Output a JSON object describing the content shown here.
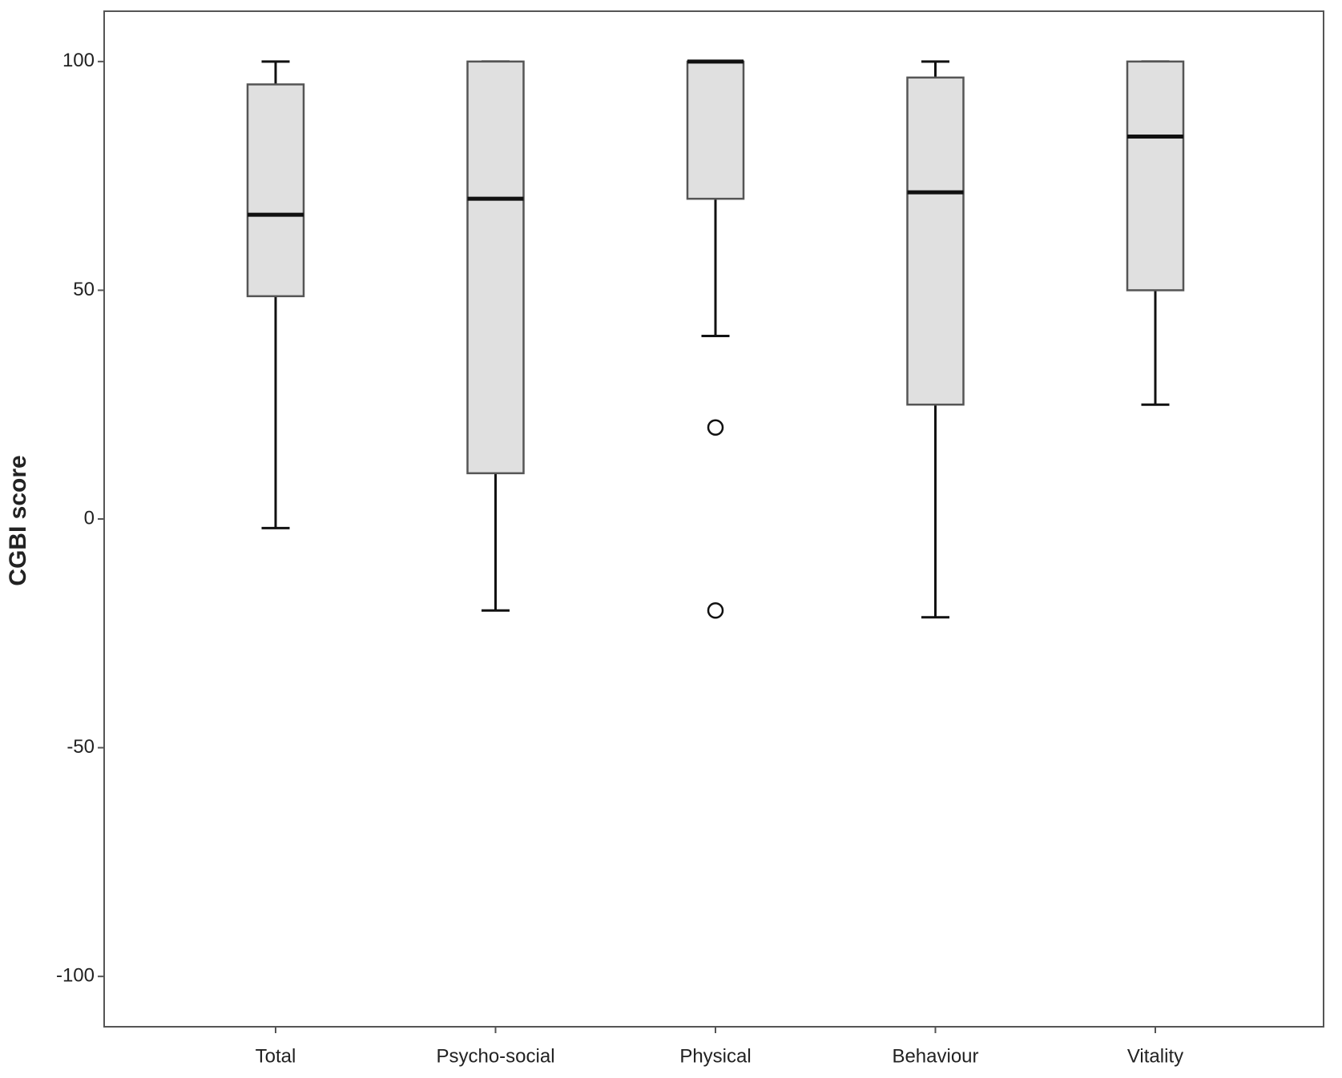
{
  "chart_data": {
    "type": "box",
    "y_label": "CGBI score",
    "categories": [
      "Total",
      "Psycho-social",
      "Physical",
      "Behaviour",
      "Vitality"
    ],
    "whisker_low": [
      -2,
      -20,
      40,
      -21.5,
      25
    ],
    "q1": [
      48.7,
      10,
      70,
      25,
      50
    ],
    "median": [
      66.5,
      70,
      100,
      71.4,
      83.6
    ],
    "q3": [
      95,
      100,
      100,
      96.5,
      100
    ],
    "whisker_high": [
      100,
      100,
      100,
      100,
      100
    ],
    "outliers": [
      [],
      [],
      [
        20,
        -20
      ],
      [],
      []
    ],
    "color": "#e0e0e0",
    "ylim": [
      -111,
      111
    ],
    "yticks": [
      100,
      50,
      0,
      -50,
      -100
    ]
  }
}
